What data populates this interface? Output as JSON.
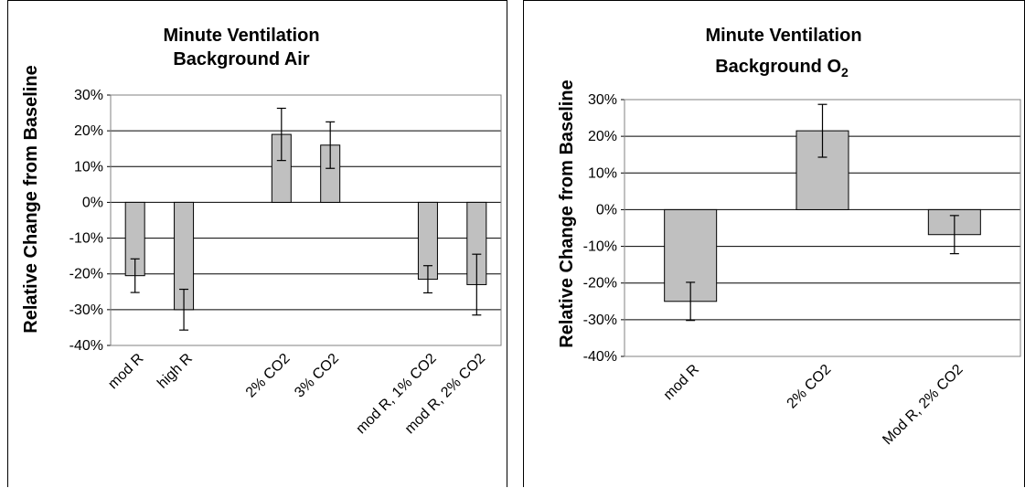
{
  "chart_data": [
    {
      "type": "bar",
      "title": [
        "Minute Ventilation",
        "Background Air"
      ],
      "ylabel": "Relative Change from Baseline",
      "xlabel": "",
      "ylim": [
        -40,
        30
      ],
      "yticks": [
        30,
        20,
        10,
        0,
        -10,
        -20,
        -30,
        -40
      ],
      "ytick_labels": [
        "30%",
        "20%",
        "10%",
        "0%",
        "-10%",
        "-20%",
        "-30%",
        "-40%"
      ],
      "grid": true,
      "categories": [
        "mod R",
        "high R",
        "",
        "2% CO2",
        "3% CO2",
        "",
        "mod R, 1% CO2",
        "mod R, 2% CO2"
      ],
      "values": [
        -20.5,
        -30,
        null,
        19,
        16,
        null,
        -21.5,
        -23
      ],
      "error": [
        4.7,
        5.7,
        null,
        7.3,
        6.5,
        null,
        3.8,
        8.5
      ],
      "colors": {
        "bar": "#c0c0c0"
      }
    },
    {
      "type": "bar",
      "title": [
        "Minute Ventilation",
        "Background O",
        "2"
      ],
      "ylabel": "Relative Change from Baseline",
      "xlabel": "",
      "ylim": [
        -40,
        30
      ],
      "yticks": [
        30,
        20,
        10,
        0,
        -10,
        -20,
        -30,
        -40
      ],
      "ytick_labels": [
        "30%",
        "20%",
        "10%",
        "0%",
        "-10%",
        "-20%",
        "-30%",
        "-40%"
      ],
      "grid": true,
      "categories": [
        "mod R",
        "2% CO2",
        "Mod R, 2% CO2"
      ],
      "values": [
        -25,
        21.5,
        -6.8
      ],
      "error": [
        5.2,
        7.2,
        5.2
      ],
      "colors": {
        "bar": "#c0c0c0"
      }
    }
  ]
}
